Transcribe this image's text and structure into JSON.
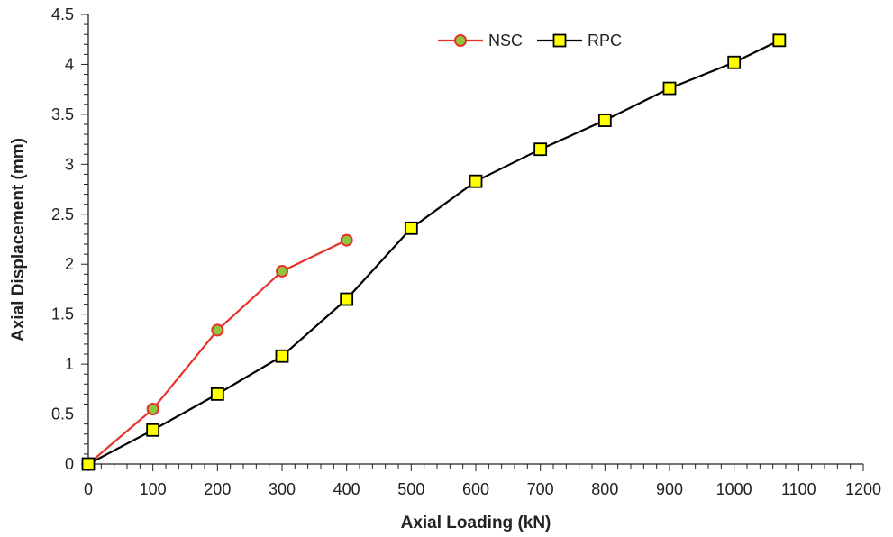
{
  "chart_data": {
    "type": "line",
    "title": "",
    "xlabel": "Axial Loading (kN)",
    "ylabel": "Axial Displacement (mm)",
    "xlim": [
      0,
      1200
    ],
    "ylim": [
      0,
      4.5
    ],
    "x_ticks": [
      "0",
      "100",
      "200",
      "300",
      "400",
      "500",
      "600",
      "700",
      "800",
      "900",
      "1000",
      "1100",
      "1200"
    ],
    "y_ticks": [
      "0",
      "0.5",
      "1",
      "1.5",
      "2",
      "2.5",
      "3",
      "3.5",
      "4",
      "4.5"
    ],
    "grid": false,
    "legend": "top-center",
    "series": [
      {
        "name": "NSC",
        "color": "#e8312a",
        "marker": "circle",
        "marker_fill": "#8dc63f",
        "x": [
          0,
          100,
          200,
          300,
          400
        ],
        "y": [
          0,
          0.55,
          1.34,
          1.93,
          2.24
        ]
      },
      {
        "name": "RPC",
        "color": "#000000",
        "marker": "square",
        "marker_fill": "#ffff00",
        "x": [
          0,
          100,
          200,
          300,
          400,
          500,
          600,
          700,
          800,
          900,
          1000,
          1070
        ],
        "y": [
          0,
          0.34,
          0.7,
          1.08,
          1.65,
          2.36,
          2.83,
          3.15,
          3.44,
          3.76,
          4.02,
          4.24
        ]
      }
    ]
  }
}
